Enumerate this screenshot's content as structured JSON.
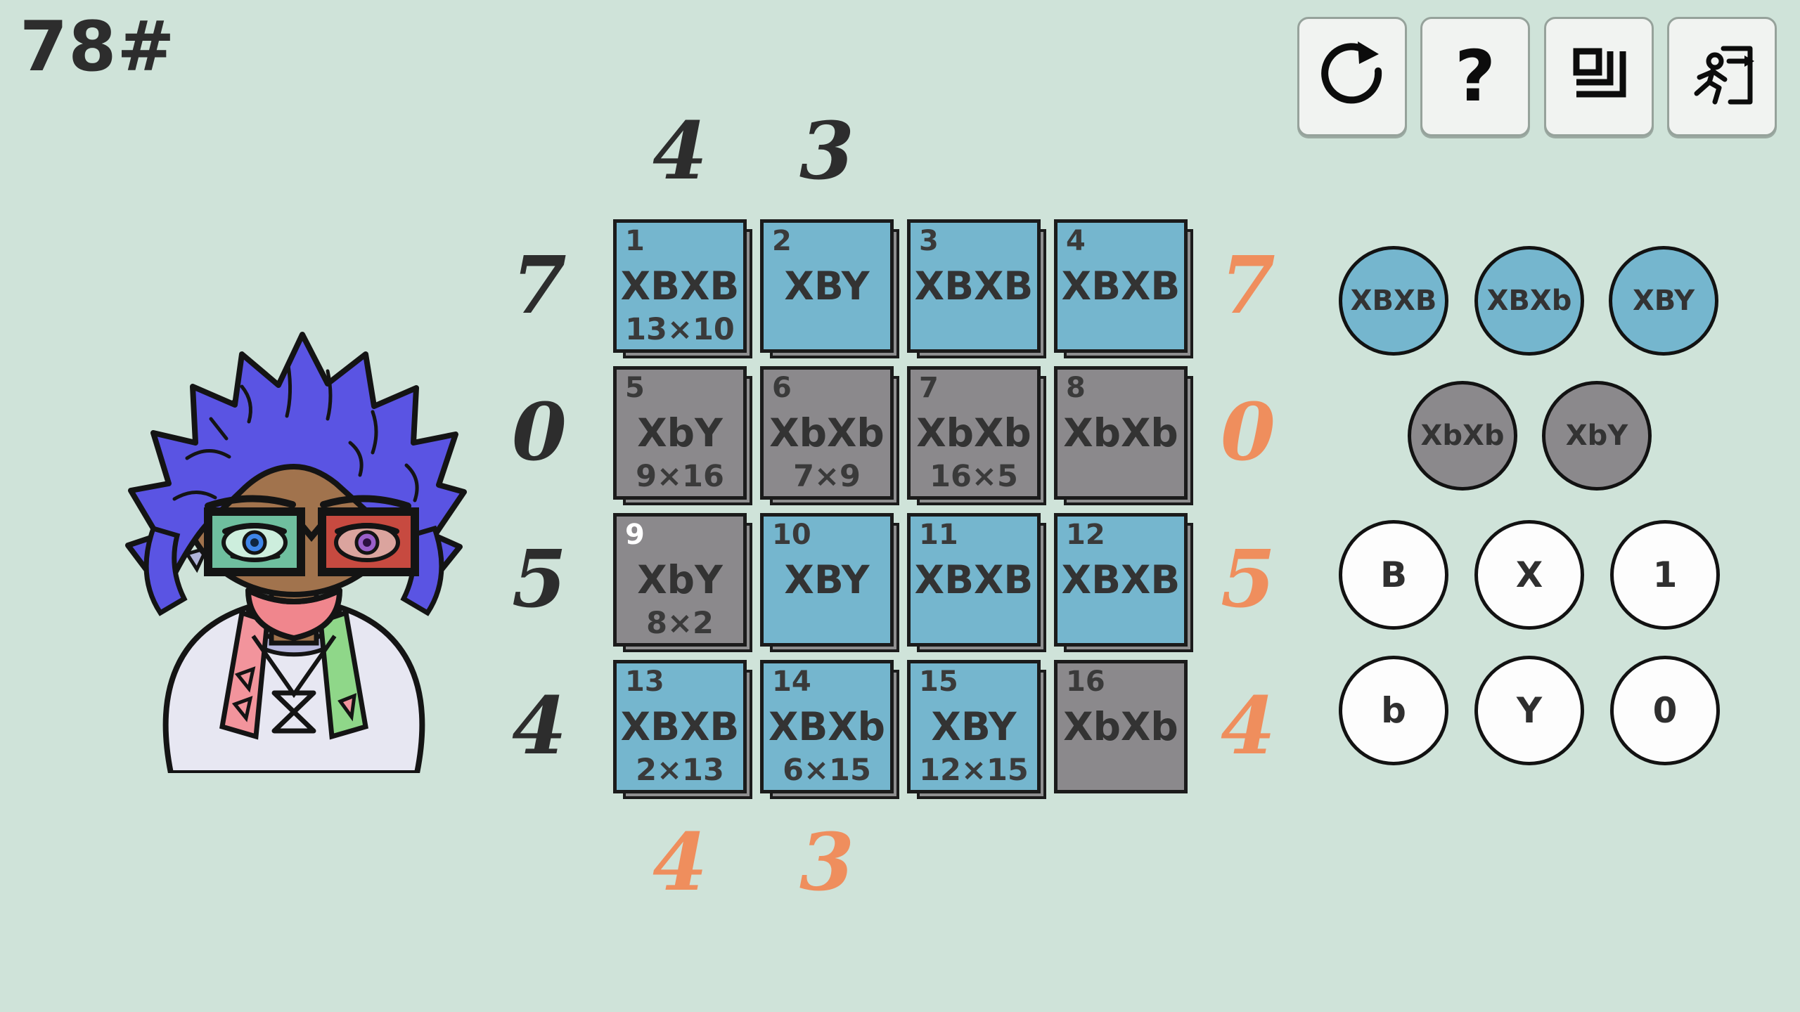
{
  "title": "78#",
  "toolbar": {
    "help_label": "?"
  },
  "board": {
    "col_clues_top": [
      "4",
      "3"
    ],
    "col_clues_bottom": [
      "4",
      "3"
    ],
    "row_clues_left": [
      "7",
      "0",
      "5",
      "4"
    ],
    "row_clues_right": [
      "7",
      "0",
      "5",
      "4"
    ],
    "cells": [
      {
        "id": "1",
        "label": "XBXB",
        "sub": "13×10",
        "variant": "blue",
        "num_white": false,
        "shadow": true
      },
      {
        "id": "2",
        "label": "XBY",
        "sub": "",
        "variant": "blue",
        "num_white": false,
        "shadow": true
      },
      {
        "id": "3",
        "label": "XBXB",
        "sub": "",
        "variant": "blue",
        "num_white": false,
        "shadow": true
      },
      {
        "id": "4",
        "label": "XBXB",
        "sub": "",
        "variant": "blue",
        "num_white": false,
        "shadow": true
      },
      {
        "id": "5",
        "label": "XbY",
        "sub": "9×16",
        "variant": "gray",
        "num_white": false,
        "shadow": true
      },
      {
        "id": "6",
        "label": "XbXb",
        "sub": "7×9",
        "variant": "gray",
        "num_white": false,
        "shadow": true
      },
      {
        "id": "7",
        "label": "XbXb",
        "sub": "16×5",
        "variant": "gray",
        "num_white": false,
        "shadow": true
      },
      {
        "id": "8",
        "label": "XbXb",
        "sub": "",
        "variant": "gray",
        "num_white": false,
        "shadow": true
      },
      {
        "id": "9",
        "label": "XbY",
        "sub": "8×2",
        "variant": "gray",
        "num_white": true,
        "shadow": true
      },
      {
        "id": "10",
        "label": "XBY",
        "sub": "",
        "variant": "blue",
        "num_white": false,
        "shadow": true
      },
      {
        "id": "11",
        "label": "XBXB",
        "sub": "",
        "variant": "blue",
        "num_white": false,
        "shadow": true
      },
      {
        "id": "12",
        "label": "XBXB",
        "sub": "",
        "variant": "blue",
        "num_white": false,
        "shadow": true
      },
      {
        "id": "13",
        "label": "XBXB",
        "sub": "2×13",
        "variant": "blue",
        "num_white": false,
        "shadow": true
      },
      {
        "id": "14",
        "label": "XBXb",
        "sub": "6×15",
        "variant": "blue",
        "num_white": false,
        "shadow": true
      },
      {
        "id": "15",
        "label": "XBY",
        "sub": "12×15",
        "variant": "blue",
        "num_white": false,
        "shadow": true
      },
      {
        "id": "16",
        "label": "XbXb",
        "sub": "",
        "variant": "gray",
        "num_white": false,
        "shadow": false
      }
    ]
  },
  "palette": {
    "genotype_options": [
      {
        "label": "XBXB",
        "variant": "blue"
      },
      {
        "label": "XBXb",
        "variant": "blue"
      },
      {
        "label": "XBY",
        "variant": "blue"
      },
      {
        "label": "XbXb",
        "variant": "gray"
      },
      {
        "label": "XbY",
        "variant": "gray"
      }
    ],
    "allele_options": [
      {
        "label": "B"
      },
      {
        "label": "X"
      },
      {
        "label": "1"
      },
      {
        "label": "b"
      },
      {
        "label": "Y"
      },
      {
        "label": "0"
      }
    ]
  },
  "colors": {
    "background": "#cfe3d9",
    "card_blue": "#75b6ce",
    "card_gray": "#8b898c",
    "card_border": "#1b1b1b",
    "clue_dark": "#2d2d2d",
    "clue_orange": "#ef8e5d",
    "text_dark": "#3a3a3a",
    "button_bg": "#f1f3f1"
  }
}
